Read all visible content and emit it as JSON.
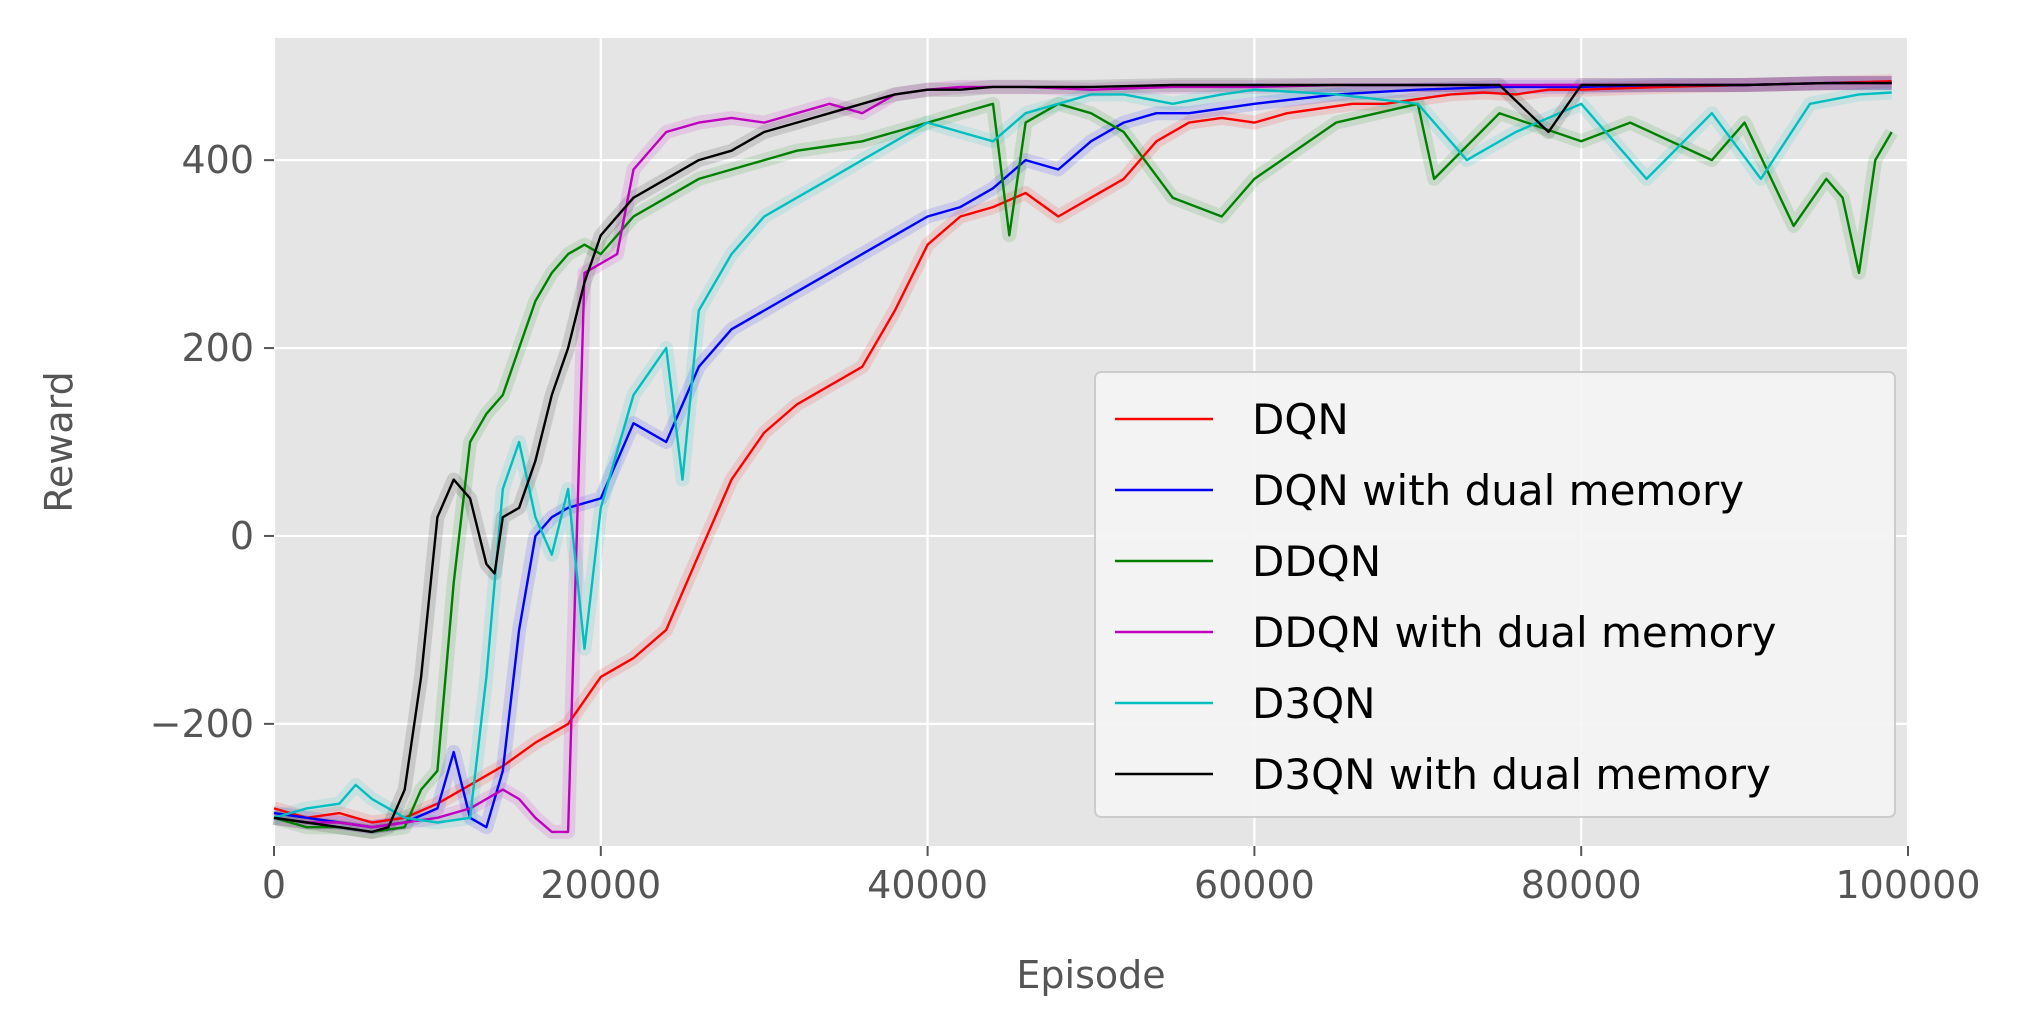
{
  "chart_data": {
    "type": "line",
    "title": "",
    "xlabel": "Episode",
    "ylabel": "Reward",
    "xlim": [
      0,
      100000
    ],
    "ylim": [
      -330,
      530
    ],
    "xticks": [
      0,
      20000,
      40000,
      60000,
      80000,
      100000
    ],
    "xtick_labels": [
      "0",
      "20000",
      "40000",
      "60000",
      "80000",
      "100000"
    ],
    "yticks": [
      -200,
      0,
      200,
      400
    ],
    "ytick_labels": [
      "−200",
      "0",
      "200",
      "400"
    ],
    "grid": true,
    "legend_position": "lower-right",
    "style": "ggplot",
    "series": [
      {
        "name": "DQN",
        "color": "#ff0000",
        "x": [
          0,
          2000,
          4000,
          6000,
          8000,
          10000,
          12000,
          14000,
          16000,
          18000,
          20000,
          22000,
          24000,
          26000,
          28000,
          30000,
          32000,
          34000,
          36000,
          38000,
          40000,
          42000,
          44000,
          46000,
          48000,
          50000,
          52000,
          54000,
          56000,
          58000,
          60000,
          62000,
          64000,
          66000,
          68000,
          70000,
          72000,
          74000,
          76000,
          78000,
          80000,
          85000,
          90000,
          95000,
          99000
        ],
        "values": [
          -290,
          -300,
          -295,
          -305,
          -300,
          -285,
          -265,
          -245,
          -220,
          -200,
          -150,
          -130,
          -100,
          -20,
          60,
          110,
          140,
          160,
          180,
          240,
          310,
          340,
          350,
          365,
          340,
          360,
          380,
          420,
          440,
          445,
          440,
          450,
          455,
          460,
          460,
          465,
          470,
          472,
          470,
          475,
          475,
          478,
          480,
          482,
          484
        ]
      },
      {
        "name": "DQN with dual memory",
        "color": "#0000ff",
        "x": [
          0,
          2000,
          4000,
          6000,
          8000,
          10000,
          11000,
          12000,
          13000,
          14000,
          15000,
          16000,
          17000,
          18000,
          20000,
          22000,
          24000,
          26000,
          28000,
          30000,
          32000,
          34000,
          36000,
          38000,
          40000,
          42000,
          44000,
          46000,
          48000,
          50000,
          52000,
          54000,
          56000,
          58000,
          60000,
          65000,
          70000,
          75000,
          80000,
          85000,
          90000,
          95000,
          99000
        ],
        "values": [
          -295,
          -300,
          -305,
          -310,
          -305,
          -290,
          -230,
          -300,
          -310,
          -250,
          -100,
          0,
          20,
          30,
          40,
          120,
          100,
          180,
          220,
          240,
          260,
          280,
          300,
          320,
          340,
          350,
          370,
          400,
          390,
          420,
          440,
          450,
          450,
          455,
          460,
          470,
          475,
          478,
          478,
          480,
          480,
          482,
          482
        ]
      },
      {
        "name": "DDQN",
        "color": "#008000",
        "x": [
          0,
          2000,
          4000,
          6000,
          8000,
          9000,
          10000,
          11000,
          12000,
          13000,
          14000,
          15000,
          16000,
          17000,
          18000,
          19000,
          20000,
          22000,
          24000,
          26000,
          28000,
          30000,
          32000,
          34000,
          36000,
          38000,
          40000,
          42000,
          44000,
          45000,
          46000,
          48000,
          50000,
          52000,
          55000,
          58000,
          60000,
          65000,
          70000,
          71000,
          75000,
          80000,
          83000,
          88000,
          90000,
          93000,
          95000,
          96000,
          97000,
          98000,
          99000
        ],
        "values": [
          -300,
          -310,
          -310,
          -315,
          -310,
          -270,
          -250,
          -50,
          100,
          130,
          150,
          200,
          250,
          280,
          300,
          310,
          300,
          340,
          360,
          380,
          390,
          400,
          410,
          415,
          420,
          430,
          440,
          450,
          460,
          320,
          440,
          460,
          450,
          430,
          360,
          340,
          380,
          440,
          460,
          380,
          450,
          420,
          440,
          400,
          440,
          330,
          380,
          360,
          280,
          400,
          430
        ]
      },
      {
        "name": "DDQN with dual memory",
        "color": "#bf00bf",
        "x": [
          0,
          2000,
          4000,
          6000,
          8000,
          10000,
          12000,
          14000,
          15000,
          16000,
          17000,
          18000,
          19000,
          20000,
          21000,
          22000,
          24000,
          26000,
          28000,
          30000,
          32000,
          34000,
          36000,
          38000,
          40000,
          42000,
          44000,
          46000,
          50000,
          55000,
          60000,
          65000,
          70000,
          75000,
          80000,
          85000,
          90000,
          95000,
          99000
        ],
        "values": [
          -300,
          -305,
          -305,
          -310,
          -305,
          -300,
          -290,
          -270,
          -280,
          -300,
          -315,
          -315,
          280,
          290,
          300,
          390,
          430,
          440,
          445,
          440,
          450,
          460,
          450,
          470,
          475,
          478,
          478,
          478,
          475,
          478,
          478,
          480,
          480,
          480,
          480,
          480,
          480,
          482,
          482
        ]
      },
      {
        "name": "D3QN",
        "color": "#00bfbf",
        "x": [
          0,
          2000,
          4000,
          5000,
          6000,
          8000,
          10000,
          12000,
          13000,
          14000,
          15000,
          16000,
          17000,
          18000,
          19000,
          20000,
          22000,
          24000,
          25000,
          26000,
          28000,
          30000,
          32000,
          34000,
          36000,
          38000,
          40000,
          42000,
          44000,
          46000,
          48000,
          50000,
          52000,
          55000,
          58000,
          60000,
          65000,
          70000,
          73000,
          76000,
          80000,
          84000,
          88000,
          91000,
          94000,
          97000,
          99000
        ],
        "values": [
          -300,
          -290,
          -285,
          -265,
          -280,
          -300,
          -305,
          -300,
          -150,
          50,
          100,
          20,
          -20,
          50,
          -120,
          30,
          150,
          200,
          60,
          240,
          300,
          340,
          360,
          380,
          400,
          420,
          440,
          430,
          420,
          450,
          460,
          470,
          470,
          460,
          470,
          475,
          470,
          460,
          400,
          430,
          460,
          380,
          450,
          380,
          460,
          470,
          472
        ]
      },
      {
        "name": "D3QN with dual memory",
        "color": "#000000",
        "x": [
          0,
          2000,
          4000,
          6000,
          7000,
          8000,
          9000,
          10000,
          11000,
          12000,
          13000,
          13500,
          14000,
          15000,
          16000,
          17000,
          18000,
          19000,
          20000,
          22000,
          24000,
          26000,
          28000,
          30000,
          32000,
          34000,
          36000,
          38000,
          40000,
          42000,
          44000,
          46000,
          50000,
          55000,
          60000,
          65000,
          70000,
          75000,
          78000,
          80000,
          85000,
          90000,
          95000,
          99000
        ],
        "values": [
          -300,
          -305,
          -310,
          -315,
          -310,
          -270,
          -150,
          20,
          60,
          40,
          -30,
          -40,
          20,
          30,
          80,
          150,
          200,
          270,
          320,
          360,
          380,
          400,
          410,
          430,
          440,
          450,
          460,
          470,
          475,
          475,
          478,
          478,
          478,
          480,
          480,
          480,
          480,
          480,
          430,
          480,
          480,
          480,
          482,
          482
        ]
      }
    ]
  }
}
